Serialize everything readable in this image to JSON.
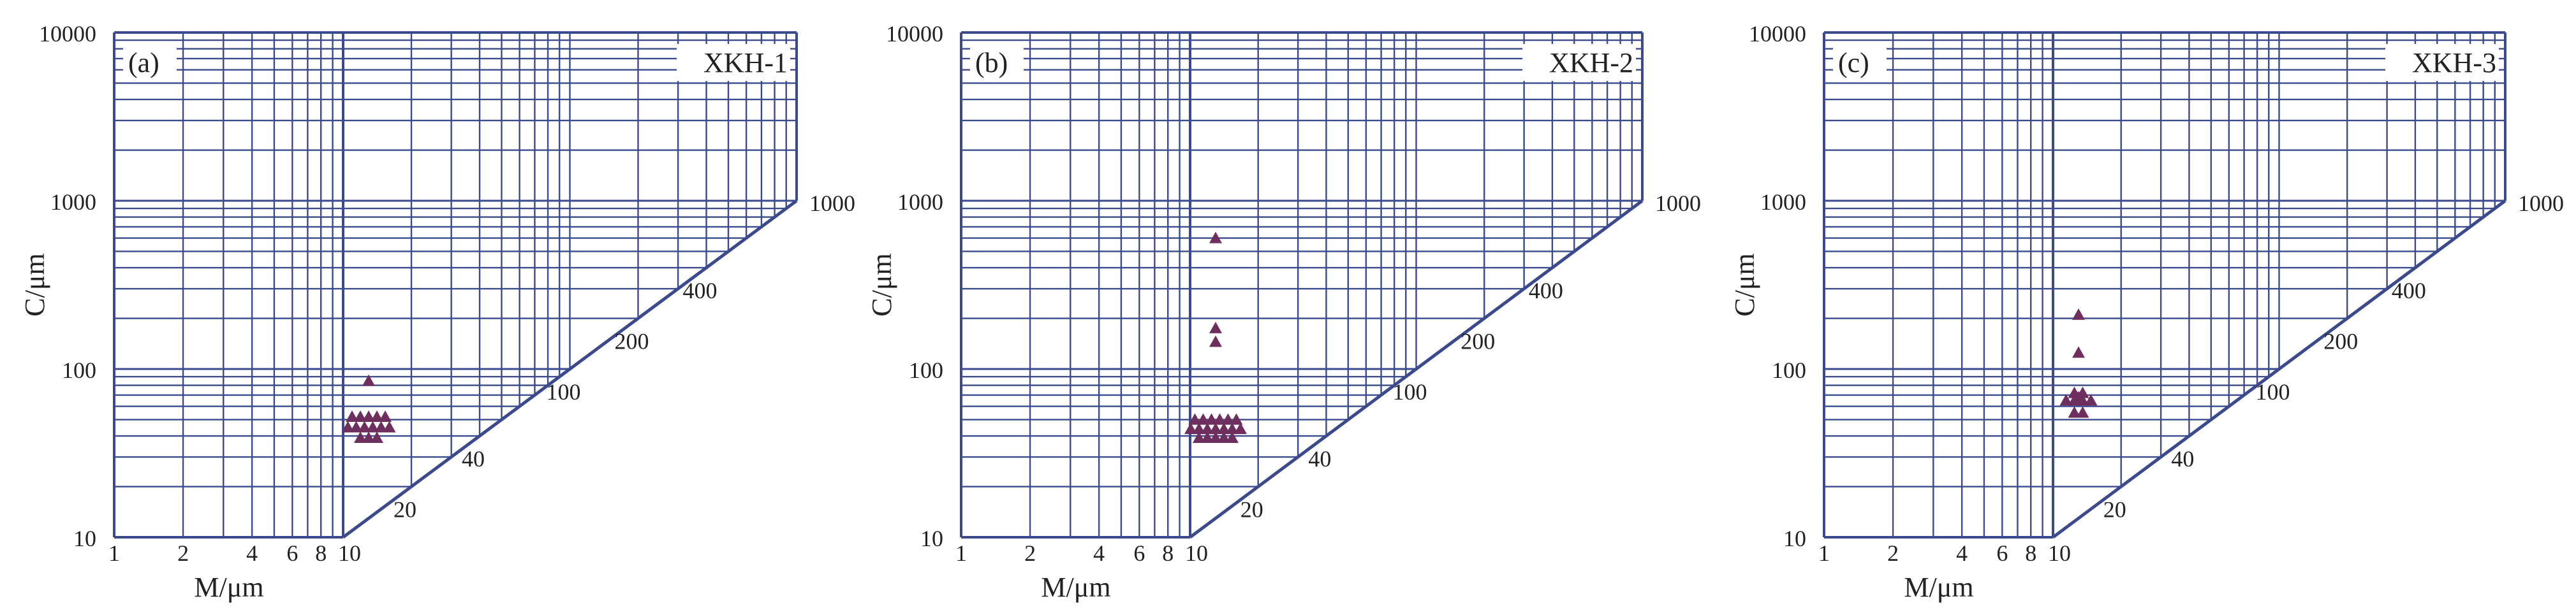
{
  "colors": {
    "grid": "#3a4a8c",
    "marker": "#6e2f5e",
    "text": "#222222"
  },
  "chart_data": [
    {
      "type": "scatter",
      "panel_label": "(a)",
      "sample_label": "XKH-1",
      "xlabel": "M/μm",
      "ylabel": "C/μm",
      "x_scale": "log",
      "y_scale": "log",
      "xlim": [
        1,
        10
      ],
      "ylim": [
        10,
        10000
      ],
      "diag_lim": [
        10,
        1000
      ],
      "x_ticks": [
        "1",
        "2",
        "4",
        "6",
        "8",
        "10"
      ],
      "y_ticks": [
        "10",
        "100",
        "1000",
        "10000"
      ],
      "diag_ticks": [
        "20",
        "40",
        "100",
        "200",
        "400",
        "1000"
      ],
      "marker": "triangle",
      "points": [
        {
          "x": 10,
          "y": 85
        },
        {
          "x": 10,
          "y": 52
        },
        {
          "x": 10,
          "y": 52
        },
        {
          "x": 10,
          "y": 52
        },
        {
          "x": 10,
          "y": 52
        },
        {
          "x": 10,
          "y": 52
        },
        {
          "x": 10,
          "y": 45
        },
        {
          "x": 10,
          "y": 45
        },
        {
          "x": 10,
          "y": 45
        },
        {
          "x": 10,
          "y": 45
        },
        {
          "x": 10,
          "y": 45
        },
        {
          "x": 10,
          "y": 45
        },
        {
          "x": 10,
          "y": 39
        },
        {
          "x": 10,
          "y": 39
        },
        {
          "x": 10,
          "y": 39
        }
      ]
    },
    {
      "type": "scatter",
      "panel_label": "(b)",
      "sample_label": "XKH-2",
      "xlabel": "M/μm",
      "ylabel": "C/μm",
      "x_scale": "log",
      "y_scale": "log",
      "xlim": [
        1,
        10
      ],
      "ylim": [
        10,
        10000
      ],
      "diag_lim": [
        10,
        1000
      ],
      "x_ticks": [
        "1",
        "2",
        "4",
        "6",
        "8",
        "10"
      ],
      "y_ticks": [
        "10",
        "100",
        "1000",
        "10000"
      ],
      "diag_ticks": [
        "20",
        "40",
        "100",
        "200",
        "400",
        "1000"
      ],
      "marker": "triangle",
      "points": [
        {
          "x": 10,
          "y": 600
        },
        {
          "x": 10,
          "y": 175
        },
        {
          "x": 10,
          "y": 145
        },
        {
          "x": 10,
          "y": 50
        },
        {
          "x": 10,
          "y": 50
        },
        {
          "x": 10,
          "y": 50
        },
        {
          "x": 10,
          "y": 50
        },
        {
          "x": 10,
          "y": 50
        },
        {
          "x": 10,
          "y": 50
        },
        {
          "x": 10,
          "y": 44
        },
        {
          "x": 10,
          "y": 44
        },
        {
          "x": 10,
          "y": 44
        },
        {
          "x": 10,
          "y": 44
        },
        {
          "x": 10,
          "y": 44
        },
        {
          "x": 10,
          "y": 44
        },
        {
          "x": 10,
          "y": 44
        },
        {
          "x": 10,
          "y": 39
        },
        {
          "x": 10,
          "y": 39
        },
        {
          "x": 10,
          "y": 39
        },
        {
          "x": 10,
          "y": 39
        },
        {
          "x": 10,
          "y": 39
        }
      ]
    },
    {
      "type": "scatter",
      "panel_label": "(c)",
      "sample_label": "XKH-3",
      "xlabel": "M/μm",
      "ylabel": "C/μm",
      "x_scale": "log",
      "y_scale": "log",
      "xlim": [
        1,
        10
      ],
      "ylim": [
        10,
        10000
      ],
      "diag_lim": [
        10,
        1000
      ],
      "x_ticks": [
        "1",
        "2",
        "4",
        "6",
        "8",
        "10"
      ],
      "y_ticks": [
        "10",
        "100",
        "1000",
        "10000"
      ],
      "diag_ticks": [
        "20",
        "40",
        "100",
        "200",
        "400",
        "1000"
      ],
      "marker": "triangle",
      "points": [
        {
          "x": 10,
          "y": 210
        },
        {
          "x": 10,
          "y": 125
        },
        {
          "x": 10,
          "y": 72
        },
        {
          "x": 10,
          "y": 72
        },
        {
          "x": 10,
          "y": 68
        },
        {
          "x": 10,
          "y": 65
        },
        {
          "x": 10,
          "y": 65
        },
        {
          "x": 10,
          "y": 65
        },
        {
          "x": 10,
          "y": 65
        },
        {
          "x": 10,
          "y": 55
        },
        {
          "x": 10,
          "y": 55
        }
      ]
    }
  ]
}
